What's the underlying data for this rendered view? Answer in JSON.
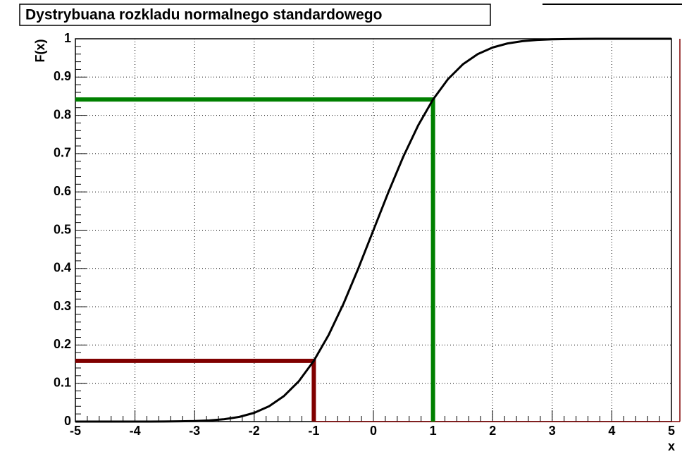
{
  "chart_data": {
    "type": "line",
    "title": "Dystrybuana rozkladu normalnego standardowego",
    "x_label": "x",
    "y_label": "F(x)",
    "x": [
      -5,
      -4.75,
      -4.5,
      -4.25,
      -4,
      -3.75,
      -3.5,
      -3.25,
      -3,
      -2.75,
      -2.5,
      -2.25,
      -2,
      -1.75,
      -1.5,
      -1.25,
      -1,
      -0.75,
      -0.5,
      -0.25,
      0,
      0.25,
      0.5,
      0.75,
      1,
      1.25,
      1.5,
      1.75,
      2,
      2.25,
      2.5,
      2.75,
      3,
      3.25,
      3.5,
      3.75,
      4,
      4.25,
      4.5,
      4.75,
      5
    ],
    "series": [
      {
        "name": "F(x)",
        "color": "#000000",
        "values": [
          0,
          0,
          0,
          0,
          0,
          0.0001,
          0.0002,
          0.0006,
          0.0013,
          0.003,
          0.0062,
          0.0122,
          0.0228,
          0.0401,
          0.0668,
          0.1056,
          0.1587,
          0.2266,
          0.3085,
          0.4013,
          0.5,
          0.5987,
          0.6915,
          0.7734,
          0.8413,
          0.8944,
          0.9332,
          0.9599,
          0.9772,
          0.9878,
          0.9938,
          0.997,
          0.9987,
          0.9994,
          0.9998,
          0.9999,
          1,
          1,
          1,
          1,
          1
        ]
      }
    ],
    "markers": [
      {
        "x": -1,
        "y": 0.1587,
        "color": "#800000"
      },
      {
        "x": 1,
        "y": 0.8413,
        "color": "#008000"
      }
    ],
    "xlim": [
      -5,
      5
    ],
    "ylim": [
      0,
      1
    ],
    "xticks": [
      -5,
      -4,
      -3,
      -2,
      -1,
      0,
      1,
      2,
      3,
      4,
      5
    ],
    "yticks": [
      0,
      0.1,
      0.2,
      0.3,
      0.4,
      0.5,
      0.6,
      0.7,
      0.8,
      0.9,
      1
    ],
    "grid": true
  }
}
